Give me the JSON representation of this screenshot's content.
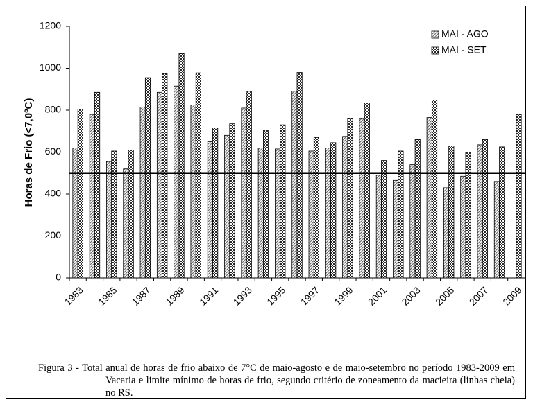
{
  "chart_data": {
    "type": "bar",
    "y_label": "Horas de Frio (<7,0ºC)",
    "categories": [
      "1983",
      null,
      "1985",
      null,
      "1987",
      null,
      "1989",
      null,
      "1991",
      null,
      "1993",
      null,
      "1995",
      null,
      "1997",
      null,
      "1999",
      null,
      "2001",
      null,
      "2003",
      null,
      "2005",
      null,
      "2007",
      null,
      "2009"
    ],
    "series": [
      {
        "name": "MAI - AGO",
        "color": "#6e6e6e",
        "pattern": "hatch",
        "values": [
          620,
          780,
          555,
          520,
          815,
          885,
          915,
          825,
          650,
          680,
          810,
          620,
          615,
          890,
          605,
          620,
          675,
          760,
          490,
          465,
          540,
          765,
          430,
          485,
          635,
          460,
          null
        ]
      },
      {
        "name": "MAI - SET",
        "color": "#2a2a2a",
        "pattern": "checker",
        "values": [
          805,
          885,
          605,
          610,
          955,
          975,
          1070,
          978,
          715,
          735,
          890,
          705,
          730,
          980,
          670,
          645,
          760,
          835,
          560,
          605,
          660,
          848,
          630,
          600,
          660,
          625,
          780
        ]
      }
    ],
    "hline": 500,
    "ylim": [
      0,
      1200
    ],
    "yticks": [
      0,
      200,
      400,
      600,
      800,
      1000,
      1200
    ],
    "legend": "top-right",
    "caption": "Figura 3 - Total anual de horas de frio abaixo de 7°C de maio-agosto e de maio-setembro no período 1983-2009 em Vacaria e limite mínimo de horas de frio, segundo critério de zoneamento da macieira (linhas cheia) no RS."
  }
}
